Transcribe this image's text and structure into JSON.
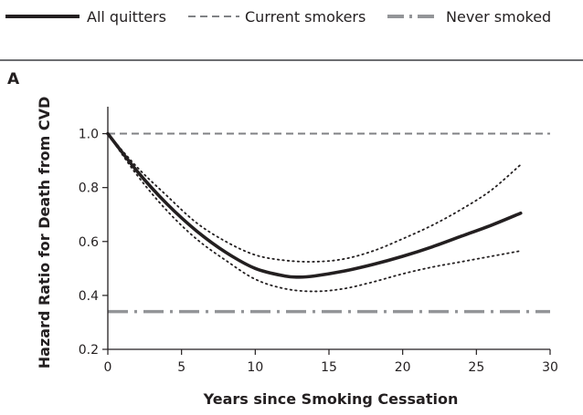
{
  "legend": {
    "all_quitters": "All quitters",
    "current_smokers": "Current smokers",
    "never_smoked": "Never smoked"
  },
  "panel_label": "A",
  "chart_data": {
    "type": "line",
    "xlabel": "Years since Smoking Cessation",
    "ylabel": "Hazard Ratio for Death from CVD",
    "xlim": [
      0,
      30
    ],
    "ylim": [
      0.2,
      1.1
    ],
    "xticks": [
      0,
      5,
      10,
      15,
      20,
      25,
      30
    ],
    "yticks": [
      0.2,
      0.4,
      0.6,
      0.8,
      1.0
    ],
    "ytick_labels": [
      "0.2",
      "0.4",
      "0.6",
      "0.8",
      "1.0"
    ],
    "grid": false,
    "legend_position": "top",
    "colors": {
      "quitters": "#231f20",
      "current": "#808285",
      "never": "#939598",
      "axis": "#231f20"
    },
    "series": [
      {
        "name": "All quitters",
        "style": "solid",
        "x": [
          0,
          2,
          4,
          6,
          8,
          10,
          12,
          13,
          14,
          16,
          18,
          20,
          22,
          24,
          26,
          28
        ],
        "y": [
          1.0,
          0.86,
          0.74,
          0.64,
          0.56,
          0.5,
          0.472,
          0.468,
          0.472,
          0.49,
          0.515,
          0.545,
          0.58,
          0.62,
          0.66,
          0.705
        ]
      },
      {
        "name": "Current smokers",
        "style": "dashed",
        "x": [
          0,
          30
        ],
        "y": [
          1.0,
          1.0
        ]
      },
      {
        "name": "Never smoked",
        "style": "dash-dot",
        "x": [
          0,
          30
        ],
        "y": [
          0.34,
          0.34
        ]
      },
      {
        "name": "Upper 95% CI",
        "style": "dotted",
        "x": [
          0,
          2,
          4,
          6,
          8,
          10,
          12,
          14,
          16,
          18,
          20,
          22,
          24,
          26,
          28
        ],
        "y": [
          1.0,
          0.875,
          0.77,
          0.67,
          0.6,
          0.55,
          0.53,
          0.525,
          0.535,
          0.565,
          0.61,
          0.66,
          0.72,
          0.79,
          0.885
        ]
      },
      {
        "name": "Lower 95% CI",
        "style": "dotted",
        "x": [
          0,
          2,
          4,
          6,
          8,
          10,
          12,
          14,
          16,
          18,
          20,
          22,
          24,
          26,
          28
        ],
        "y": [
          1.0,
          0.845,
          0.715,
          0.61,
          0.53,
          0.46,
          0.425,
          0.415,
          0.425,
          0.45,
          0.48,
          0.505,
          0.525,
          0.545,
          0.565
        ]
      }
    ]
  }
}
